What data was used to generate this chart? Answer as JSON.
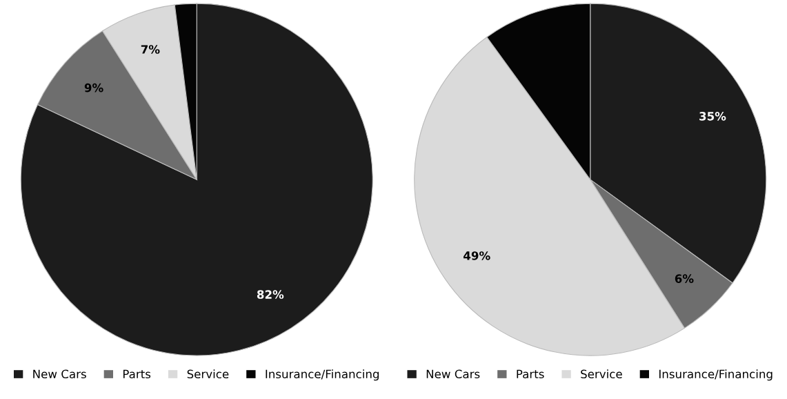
{
  "chart_data": [
    {
      "type": "pie",
      "categories": [
        "New Cars",
        "Parts",
        "Service",
        "Insurance/Financing"
      ],
      "values": [
        82,
        9,
        7,
        2
      ],
      "colors": [
        "#1c1c1c",
        "#6e6e6e",
        "#dadada",
        "#050505"
      ],
      "value_labels": [
        "82%",
        "9%",
        "7%",
        null
      ],
      "legend": "bottom"
    },
    {
      "type": "pie",
      "categories": [
        "New Cars",
        "Parts",
        "Service",
        "Insurance/Financing"
      ],
      "values": [
        35,
        6,
        49,
        10
      ],
      "colors": [
        "#1c1c1c",
        "#6e6e6e",
        "#dadada",
        "#050505"
      ],
      "value_labels": [
        "35%",
        "6%",
        "49%",
        null
      ],
      "legend": "bottom"
    }
  ]
}
